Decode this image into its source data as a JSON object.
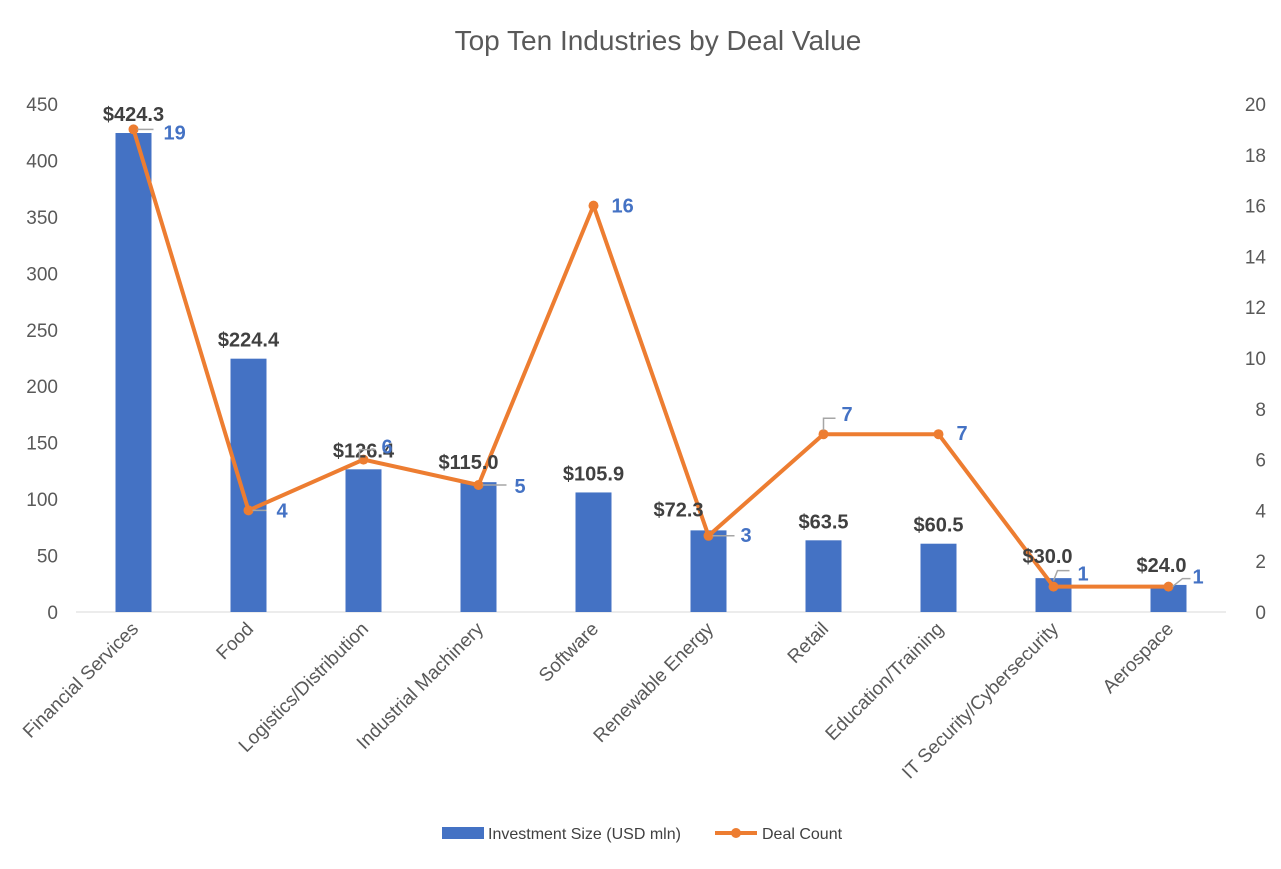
{
  "chart_data": {
    "type": "bar+line",
    "title": "Top Ten Industries by Deal Value",
    "categories": [
      "Financial Services",
      "Food",
      "Logistics/Distribution",
      "Industrial Machinery",
      "Software",
      "Renewable Energy",
      "Retail",
      "Education/Training",
      "IT Security/Cybersecurity",
      "Aerospace"
    ],
    "series": [
      {
        "name": "Investment Size (USD mln)",
        "type": "bar",
        "axis": "left",
        "color": "#4472c4",
        "values": [
          424.3,
          224.4,
          126.4,
          115.0,
          105.9,
          72.3,
          63.5,
          60.5,
          30.0,
          24.0
        ],
        "labels": [
          "$424.3",
          "$224.4",
          "$126.4",
          "$115.0",
          "$105.9",
          "$72.3",
          "$63.5",
          "$60.5",
          "$30.0",
          "$24.0"
        ]
      },
      {
        "name": "Deal Count",
        "type": "line",
        "axis": "right",
        "color": "#ed7d31",
        "values": [
          19,
          4,
          6,
          5,
          16,
          3,
          7,
          7,
          1,
          1
        ],
        "labels": [
          "19",
          "4",
          "6",
          "5",
          "16",
          "3",
          "7",
          "7",
          "1",
          "1"
        ]
      }
    ],
    "y_left": {
      "min": 0,
      "max": 450,
      "ticks": [
        "0",
        "50",
        "100",
        "150",
        "200",
        "250",
        "300",
        "350",
        "400",
        "450"
      ]
    },
    "y_right": {
      "min": 0,
      "max": 20,
      "ticks": [
        "0",
        "2",
        "4",
        "6",
        "8",
        "10",
        "12",
        "14",
        "16",
        "18",
        "20"
      ]
    },
    "legend": {
      "position": "bottom",
      "items": [
        "Investment Size (USD mln)",
        "Deal Count"
      ]
    },
    "grid": false
  }
}
